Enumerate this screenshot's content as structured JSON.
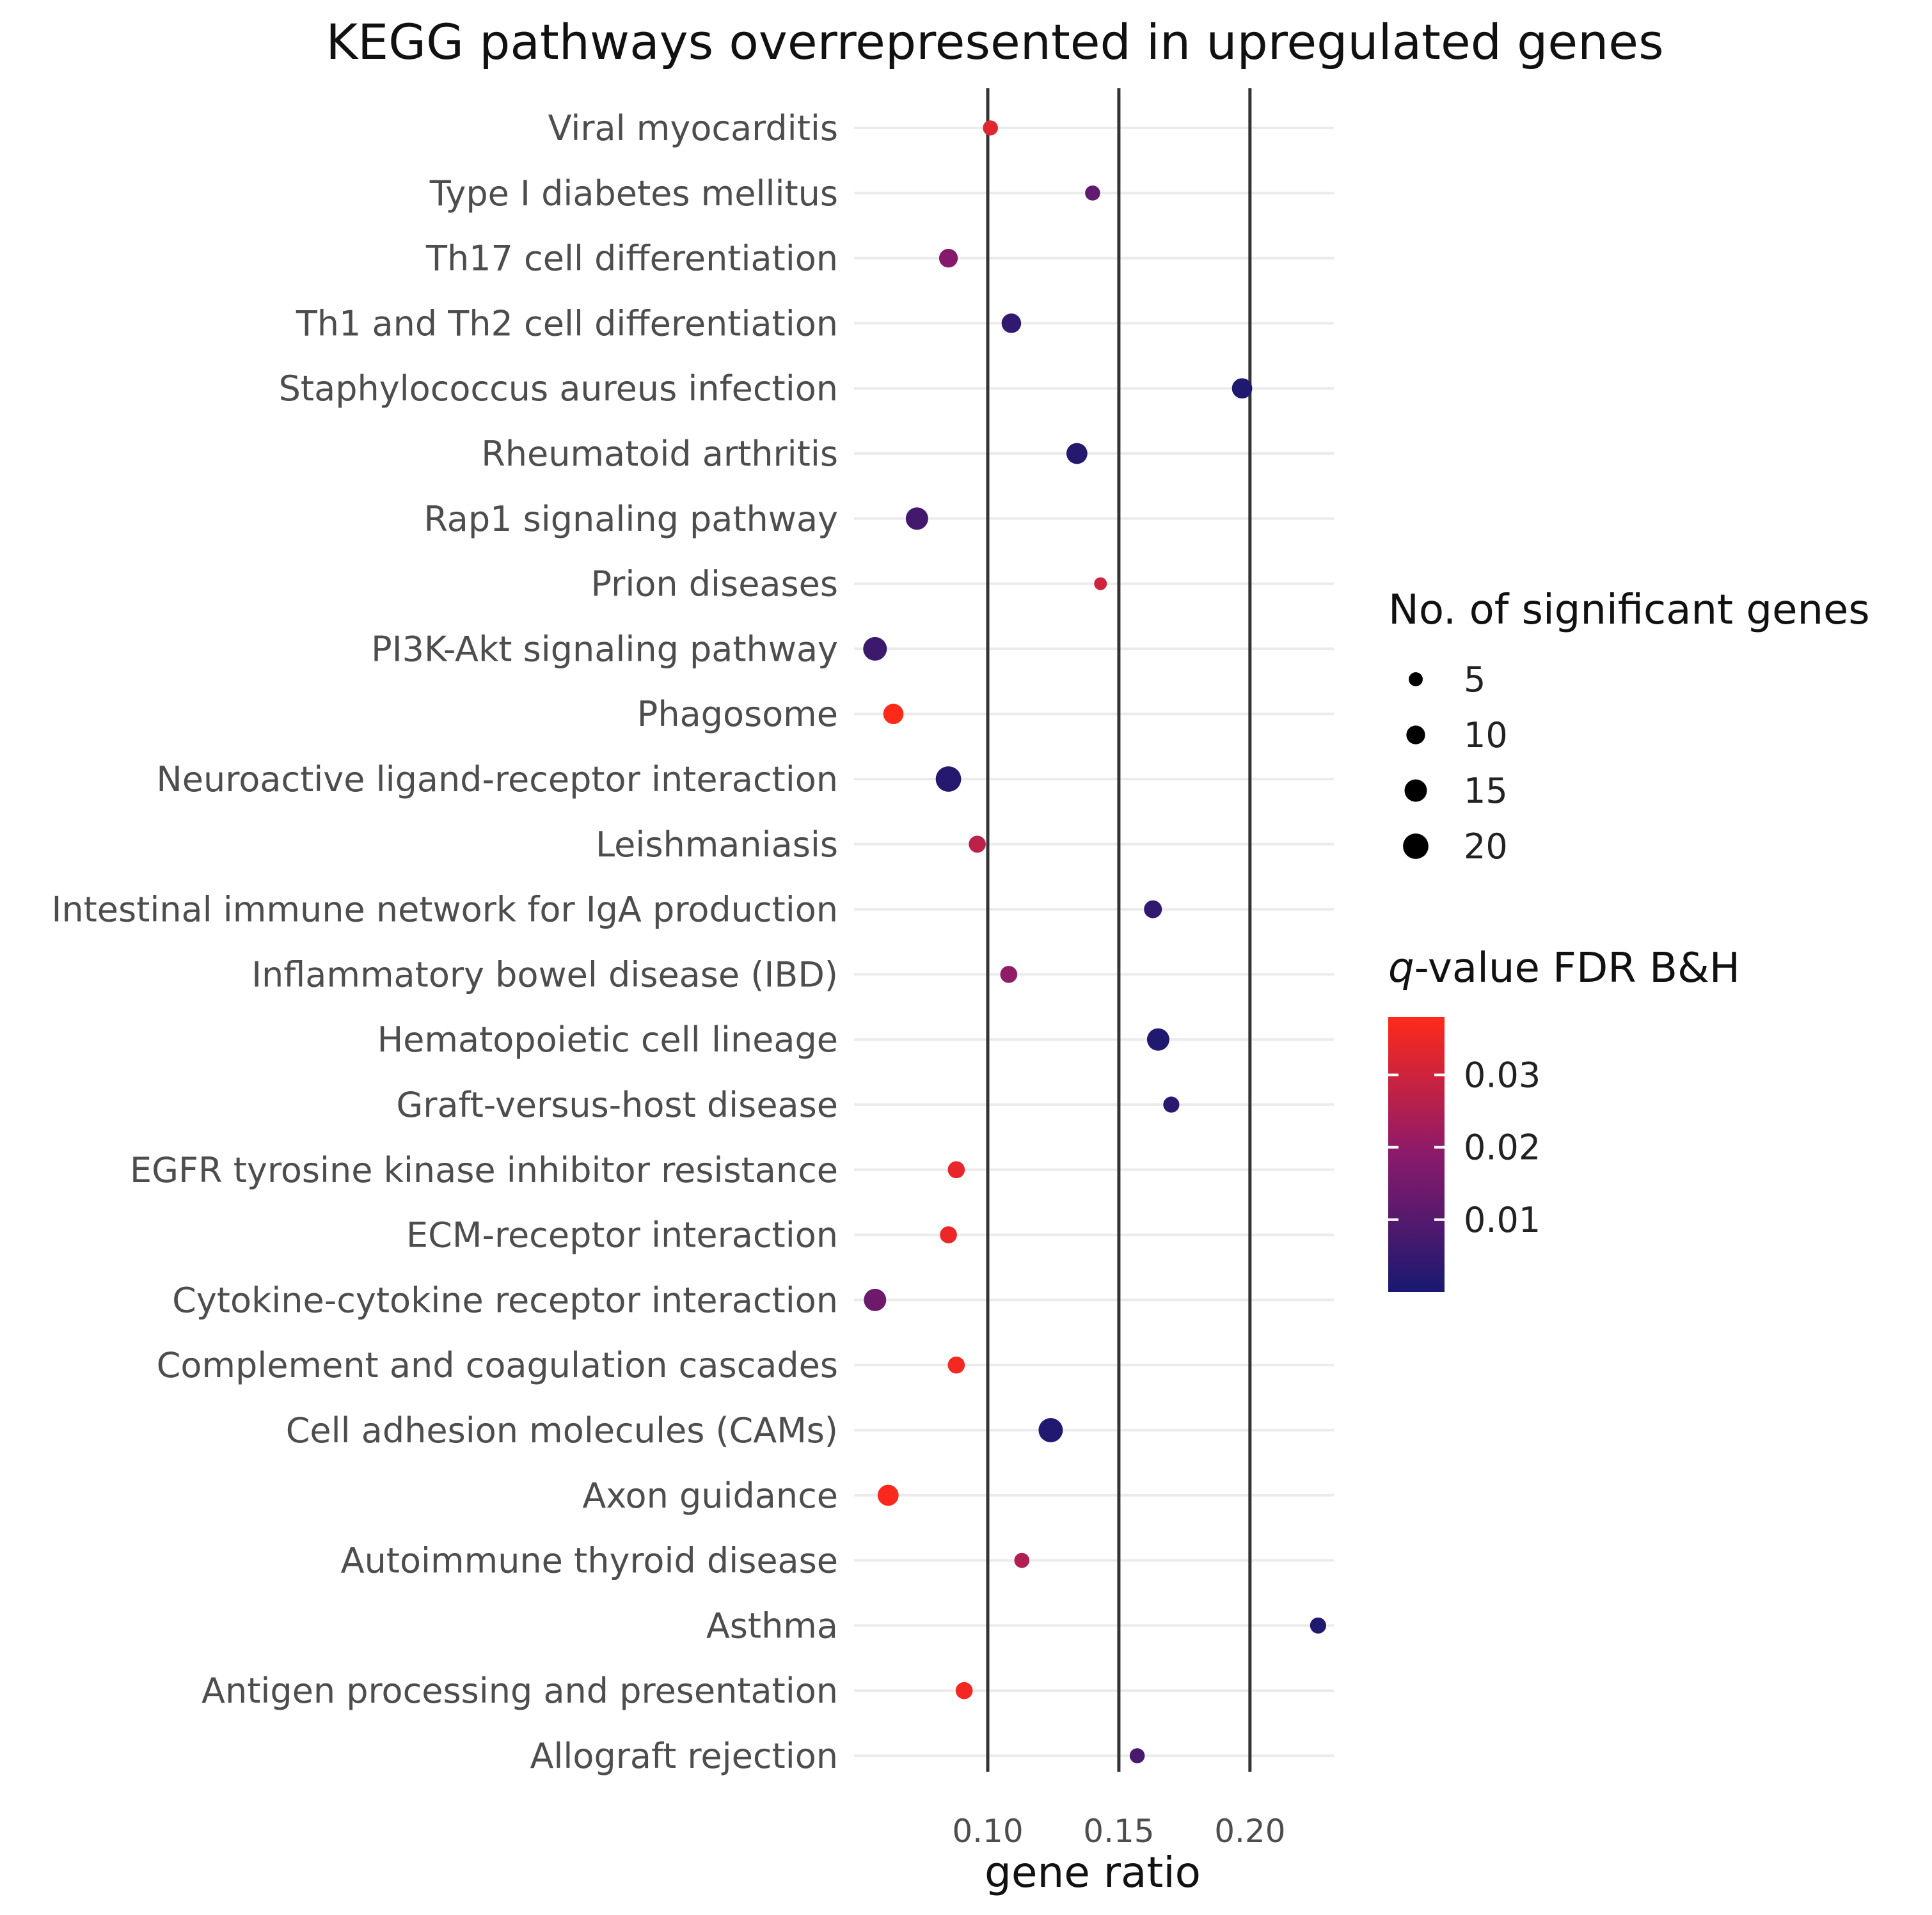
{
  "chart_data": {
    "type": "scatter",
    "title": "KEGG pathways overrepresented in upregulated genes",
    "xlabel": "gene ratio",
    "ylabel": "",
    "xlim": [
      0.049,
      0.232
    ],
    "x_ticks": [
      0.1,
      0.15,
      0.2
    ],
    "x_tick_labels": [
      "0.10",
      "0.15",
      "0.20"
    ],
    "categories": [
      "Viral myocarditis",
      "Type I diabetes mellitus",
      "Th17 cell differentiation",
      "Th1 and Th2 cell differentiation",
      "Staphylococcus aureus infection",
      "Rheumatoid arthritis",
      "Rap1 signaling pathway",
      "Prion diseases",
      "PI3K-Akt signaling pathway",
      "Phagosome",
      "Neuroactive ligand-receptor interaction",
      "Leishmaniasis",
      "Intestinal immune network for IgA production",
      "Inflammatory bowel disease (IBD)",
      "Hematopoietic cell lineage",
      "Graft-versus-host disease",
      "EGFR tyrosine kinase inhibitor resistance",
      "ECM-receptor interaction",
      "Cytokine-cytokine receptor interaction",
      "Complement and coagulation cascades",
      "Cell adhesion molecules (CAMs)",
      "Axon guidance",
      "Autoimmune thyroid disease",
      "Asthma",
      "Antigen processing and presentation",
      "Allograft rejection"
    ],
    "points": [
      {
        "pathway": "Viral myocarditis",
        "gene_ratio": 0.101,
        "n_genes": 6,
        "q_value": 0.033
      },
      {
        "pathway": "Type I diabetes mellitus",
        "gene_ratio": 0.14,
        "n_genes": 6,
        "q_value": 0.012
      },
      {
        "pathway": "Th17 cell differentiation",
        "gene_ratio": 0.085,
        "n_genes": 10,
        "q_value": 0.018
      },
      {
        "pathway": "Th1 and Th2 cell differentiation",
        "gene_ratio": 0.109,
        "n_genes": 11,
        "q_value": 0.004
      },
      {
        "pathway": "Staphylococcus aureus infection",
        "gene_ratio": 0.197,
        "n_genes": 12,
        "q_value": 0.001
      },
      {
        "pathway": "Rheumatoid arthritis",
        "gene_ratio": 0.134,
        "n_genes": 13,
        "q_value": 0.002
      },
      {
        "pathway": "Rap1 signaling pathway",
        "gene_ratio": 0.073,
        "n_genes": 15,
        "q_value": 0.007
      },
      {
        "pathway": "Prion diseases",
        "gene_ratio": 0.143,
        "n_genes": 4,
        "q_value": 0.03
      },
      {
        "pathway": "PI3K-Akt signaling pathway",
        "gene_ratio": 0.057,
        "n_genes": 17,
        "q_value": 0.006
      },
      {
        "pathway": "Phagosome",
        "gene_ratio": 0.064,
        "n_genes": 12,
        "q_value": 0.038
      },
      {
        "pathway": "Neuroactive ligand-receptor interaction",
        "gene_ratio": 0.085,
        "n_genes": 20,
        "q_value": 0.002
      },
      {
        "pathway": "Leishmaniasis",
        "gene_ratio": 0.096,
        "n_genes": 8,
        "q_value": 0.027
      },
      {
        "pathway": "Intestinal immune network for IgA production",
        "gene_ratio": 0.163,
        "n_genes": 9,
        "q_value": 0.004
      },
      {
        "pathway": "Inflammatory bowel disease (IBD)",
        "gene_ratio": 0.108,
        "n_genes": 8,
        "q_value": 0.02
      },
      {
        "pathway": "Hematopoietic cell lineage",
        "gene_ratio": 0.165,
        "n_genes": 15,
        "q_value": 0.001
      },
      {
        "pathway": "Graft-versus-host disease",
        "gene_ratio": 0.17,
        "n_genes": 7,
        "q_value": 0.003
      },
      {
        "pathway": "EGFR tyrosine kinase inhibitor resistance",
        "gene_ratio": 0.088,
        "n_genes": 8,
        "q_value": 0.034
      },
      {
        "pathway": "ECM-receptor interaction",
        "gene_ratio": 0.085,
        "n_genes": 8,
        "q_value": 0.035
      },
      {
        "pathway": "Cytokine-cytokine receptor interaction",
        "gene_ratio": 0.057,
        "n_genes": 15,
        "q_value": 0.014
      },
      {
        "pathway": "Complement and coagulation cascades",
        "gene_ratio": 0.088,
        "n_genes": 8,
        "q_value": 0.036
      },
      {
        "pathway": "Cell adhesion molecules (CAMs)",
        "gene_ratio": 0.124,
        "n_genes": 18,
        "q_value": 0.001
      },
      {
        "pathway": "Axon guidance",
        "gene_ratio": 0.062,
        "n_genes": 13,
        "q_value": 0.037
      },
      {
        "pathway": "Autoimmune thyroid disease",
        "gene_ratio": 0.113,
        "n_genes": 6,
        "q_value": 0.025
      },
      {
        "pathway": "Asthma",
        "gene_ratio": 0.226,
        "n_genes": 7,
        "q_value": 0.001
      },
      {
        "pathway": "Antigen processing and presentation",
        "gene_ratio": 0.091,
        "n_genes": 8,
        "q_value": 0.036
      },
      {
        "pathway": "Allograft rejection",
        "gene_ratio": 0.157,
        "n_genes": 6,
        "q_value": 0.008
      }
    ],
    "size_legend": {
      "title": "No. of significant genes",
      "values": [
        5,
        10,
        15,
        20
      ],
      "labels": [
        "5",
        "10",
        "15",
        "20"
      ]
    },
    "color_legend": {
      "title_italic": "q",
      "title_rest": "-value FDR B&H",
      "ticks": [
        0.01,
        0.02,
        0.03
      ],
      "tick_labels": [
        "0.01",
        "0.02",
        "0.03"
      ],
      "range": [
        0.0,
        0.038
      ],
      "low_color": "#191970",
      "mid_color": "#8b1a6b",
      "high_color": "#ff2a1a"
    },
    "reference_lines_x": [
      0.1,
      0.15,
      0.2
    ],
    "grid": true,
    "legend_position": "right"
  }
}
